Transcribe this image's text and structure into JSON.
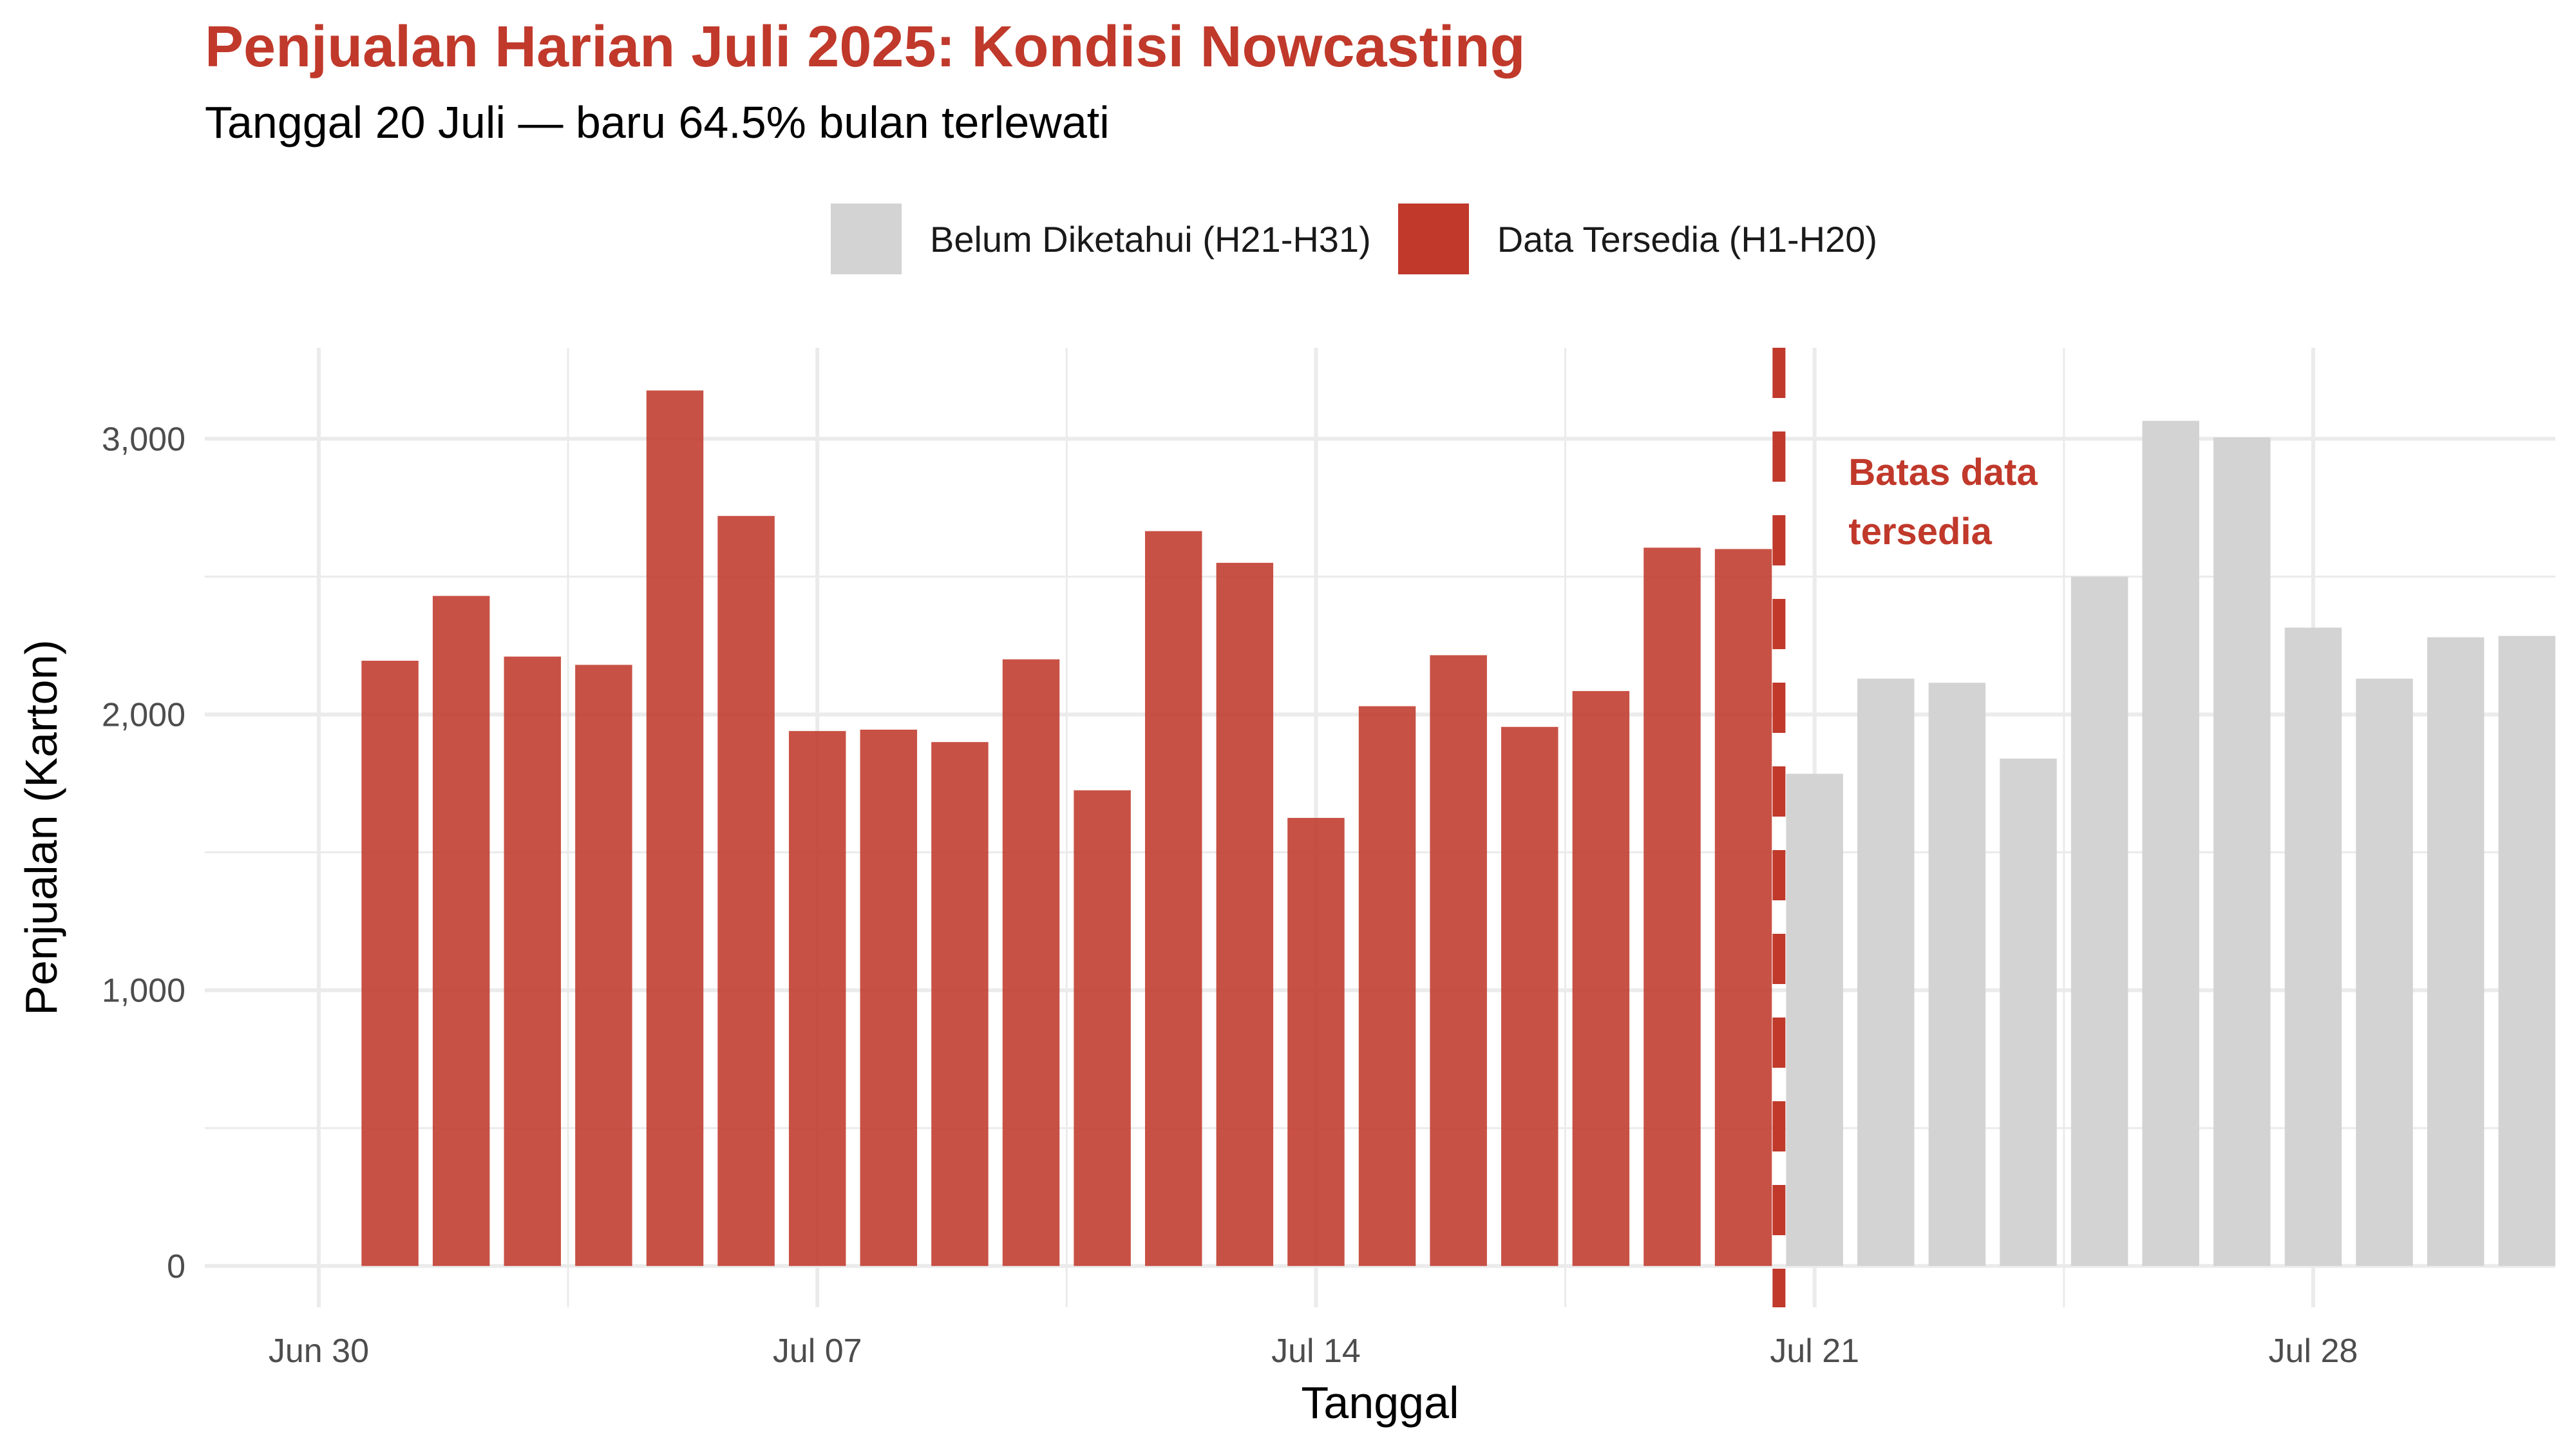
{
  "title": "Penjualan Harian Juli 2025: Kondisi Nowcasting",
  "subtitle": "Tanggal 20 Juli — baru 64.5% bulan terlewati",
  "legend": [
    {
      "label": "Belum Diketahui (H21-H31)",
      "color": "#d3d3d3"
    },
    {
      "label": "Data Tersedia (H1-H20)",
      "color": "#c0392b"
    }
  ],
  "colors": {
    "available": "#c0392b",
    "unknown": "#d3d3d3",
    "accent": "#c0392b",
    "grid": "#ebebeb"
  },
  "chart_data": {
    "type": "bar",
    "x_domain_days": [
      -1.6,
      31.4
    ],
    "ylim": [
      -150,
      3330
    ],
    "yticks": [
      {
        "value": 0,
        "label": "0"
      },
      {
        "value": 1000,
        "label": "1,000"
      },
      {
        "value": 2000,
        "label": "2,000"
      },
      {
        "value": 3000,
        "label": "3,000"
      }
    ],
    "xticks": [
      {
        "day": 0,
        "label": "Jun 30"
      },
      {
        "day": 7,
        "label": "Jul 07"
      },
      {
        "day": 14,
        "label": "Jul 14"
      },
      {
        "day": 21,
        "label": "Jul 21"
      },
      {
        "day": 28,
        "label": "Jul 28"
      }
    ],
    "xlabel": "Tanggal",
    "ylabel": "Penjualan (Karton)",
    "cutoff_day": 20.5,
    "cutoff_label": [
      "Batas data",
      "tersedia"
    ],
    "series": [
      {
        "name": "Data Tersedia (H1-H20)",
        "color": "#c0392b",
        "days": [
          1,
          2,
          3,
          4,
          5,
          6,
          7,
          8,
          9,
          10,
          11,
          12,
          13,
          14,
          15,
          16,
          17,
          18,
          19,
          20
        ],
        "values": [
          2195,
          2430,
          2210,
          2180,
          3175,
          2720,
          1940,
          1945,
          1900,
          2200,
          1725,
          2665,
          2550,
          1625,
          2030,
          2215,
          1955,
          2085,
          2605,
          2600
        ]
      },
      {
        "name": "Belum Diketahui (H21-H31)",
        "color": "#d3d3d3",
        "days": [
          21,
          22,
          23,
          24,
          25,
          26,
          27,
          28,
          29,
          30,
          31
        ],
        "values": [
          1785,
          2130,
          2115,
          1840,
          2500,
          3065,
          3005,
          2315,
          2130,
          2280,
          2285
        ]
      }
    ]
  }
}
